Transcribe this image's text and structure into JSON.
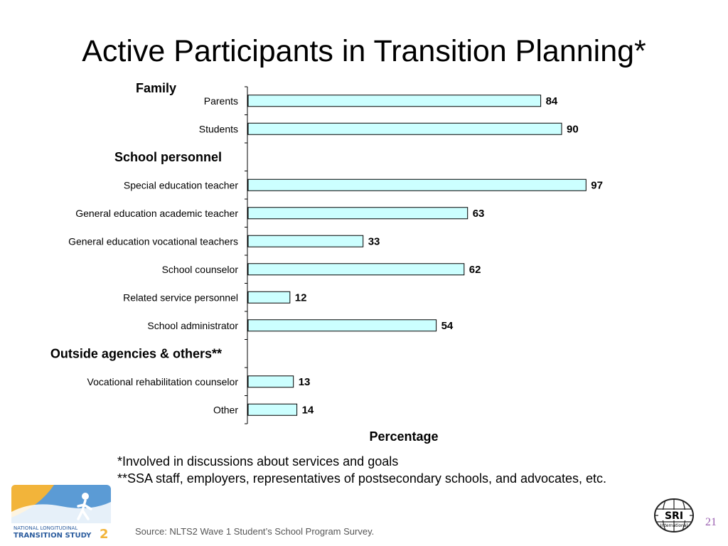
{
  "chart_data": {
    "type": "bar",
    "orientation": "horizontal",
    "title": "Active Participants in Transition Planning*",
    "xlabel": "Percentage",
    "xlim": [
      0,
      100
    ],
    "groups": [
      {
        "label": "Family",
        "categories": [
          "Parents",
          "Students"
        ],
        "values": [
          84,
          90
        ]
      },
      {
        "label": "School personnel",
        "categories": [
          "Special education teacher",
          "General education academic teacher",
          "General education vocational teachers",
          "School counselor",
          "Related service personnel",
          "School administrator"
        ],
        "values": [
          97,
          63,
          33,
          62,
          12,
          54
        ]
      },
      {
        "label": "Outside agencies & others**",
        "categories": [
          "Vocational rehabilitation counselor",
          "Other"
        ],
        "values": [
          13,
          14
        ]
      }
    ],
    "bar_color": "#ccffff",
    "grid": false
  },
  "footnotes": [
    "*Involved in discussions about services and goals",
    "**SSA staff, employers, representatives of postsecondary schools, and advocates, etc."
  ],
  "source": "Source: NLTS2 Wave 1 Student’s School Program Survey.",
  "page_number": "21",
  "logos": {
    "nlts_line1": "NATIONAL LONGITUDINAL",
    "nlts_line2": "TRANSITION STUDY",
    "nlts_num": "2",
    "sri_text": "SRI",
    "sri_sub": "International"
  }
}
